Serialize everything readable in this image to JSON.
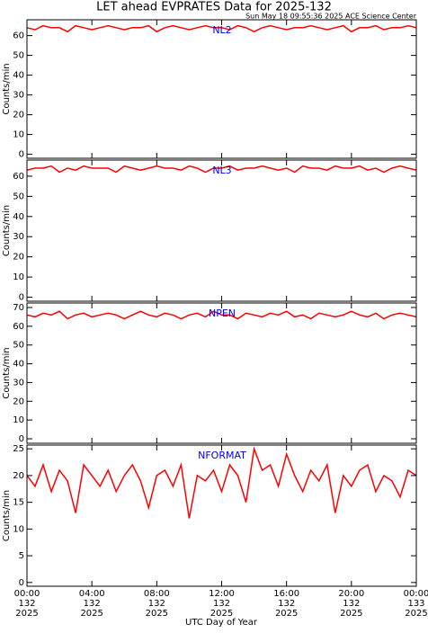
{
  "title": "LET ahead EVPRATES Data for 2025-132",
  "subtitle": "Sun May 18 09:55:36 2025 ACE Science Center",
  "xlabel": "UTC Day of Year",
  "chart_data": [
    {
      "type": "line",
      "label": "NL2",
      "ylabel": "Counts/min",
      "color": "#ff0000",
      "xlim": [
        0,
        24
      ],
      "xticks": [
        0,
        4,
        8,
        12,
        16,
        20,
        24
      ],
      "ylim": [
        -2,
        68
      ],
      "yticks": [
        0,
        10,
        20,
        30,
        40,
        50,
        60
      ],
      "x": [
        0,
        0.5,
        1,
        1.5,
        2,
        2.5,
        3,
        3.5,
        4,
        4.5,
        5,
        5.5,
        6,
        6.5,
        7,
        7.5,
        8,
        8.5,
        9,
        9.5,
        10,
        10.5,
        11,
        11.5,
        12,
        12.5,
        13,
        13.5,
        14,
        14.5,
        15,
        15.5,
        16,
        16.5,
        17,
        17.5,
        18,
        18.5,
        19,
        19.5,
        20,
        20.5,
        21,
        21.5,
        22,
        22.5,
        23,
        23.5,
        24
      ],
      "values": [
        64,
        63,
        65,
        64,
        64,
        62,
        65,
        64,
        63,
        64,
        65,
        64,
        63,
        64,
        64,
        65,
        62,
        64,
        65,
        64,
        63,
        64,
        65,
        64,
        64,
        63,
        65,
        64,
        62,
        64,
        65,
        64,
        63,
        64,
        64,
        65,
        64,
        63,
        64,
        65,
        62,
        64,
        64,
        65,
        63,
        64,
        64,
        65,
        64
      ]
    },
    {
      "type": "line",
      "label": "NL3",
      "ylabel": "Counts/min",
      "color": "#ff0000",
      "xlim": [
        0,
        24
      ],
      "xticks": [
        0,
        4,
        8,
        12,
        16,
        20,
        24
      ],
      "ylim": [
        -2,
        68
      ],
      "yticks": [
        0,
        10,
        20,
        30,
        40,
        50,
        60
      ],
      "x": [
        0,
        0.5,
        1,
        1.5,
        2,
        2.5,
        3,
        3.5,
        4,
        4.5,
        5,
        5.5,
        6,
        6.5,
        7,
        7.5,
        8,
        8.5,
        9,
        9.5,
        10,
        10.5,
        11,
        11.5,
        12,
        12.5,
        13,
        13.5,
        14,
        14.5,
        15,
        15.5,
        16,
        16.5,
        17,
        17.5,
        18,
        18.5,
        19,
        19.5,
        20,
        20.5,
        21,
        21.5,
        22,
        22.5,
        23,
        23.5,
        24
      ],
      "values": [
        63,
        64,
        64,
        65,
        62,
        64,
        63,
        65,
        64,
        64,
        64,
        62,
        65,
        64,
        63,
        64,
        65,
        64,
        64,
        63,
        65,
        64,
        62,
        64,
        64,
        65,
        63,
        64,
        64,
        65,
        64,
        63,
        64,
        62,
        65,
        64,
        64,
        63,
        65,
        64,
        64,
        65,
        63,
        64,
        62,
        64,
        65,
        64,
        63
      ]
    },
    {
      "type": "line",
      "label": "NPEN",
      "ylabel": "Counts/min",
      "color": "#ff0000",
      "xlim": [
        0,
        24
      ],
      "xticks": [
        0,
        4,
        8,
        12,
        16,
        20,
        24
      ],
      "ylim": [
        -2.4,
        72.4
      ],
      "yticks": [
        0,
        10,
        20,
        30,
        40,
        50,
        60,
        70
      ],
      "x": [
        0,
        0.5,
        1,
        1.5,
        2,
        2.5,
        3,
        3.5,
        4,
        4.5,
        5,
        5.5,
        6,
        6.5,
        7,
        7.5,
        8,
        8.5,
        9,
        9.5,
        10,
        10.5,
        11,
        11.5,
        12,
        12.5,
        13,
        13.5,
        14,
        14.5,
        15,
        15.5,
        16,
        16.5,
        17,
        17.5,
        18,
        18.5,
        19,
        19.5,
        20,
        20.5,
        21,
        21.5,
        22,
        22.5,
        23,
        23.5,
        24
      ],
      "values": [
        66,
        65,
        67,
        66,
        68,
        64,
        66,
        67,
        65,
        66,
        67,
        66,
        64,
        66,
        68,
        66,
        65,
        67,
        66,
        64,
        66,
        67,
        65,
        68,
        66,
        66,
        64,
        67,
        66,
        65,
        67,
        66,
        68,
        65,
        66,
        64,
        67,
        66,
        65,
        66,
        68,
        66,
        65,
        67,
        64,
        66,
        67,
        66,
        65
      ]
    },
    {
      "type": "line",
      "label": "NFORMAT",
      "ylabel": "Counts/min",
      "color": "#ff0000",
      "xlim": [
        0,
        24
      ],
      "xticks": [
        {
          "value": 0,
          "label": "00:00",
          "day": "132",
          "year": "2025"
        },
        {
          "value": 4,
          "label": "04:00",
          "day": "132",
          "year": "2025"
        },
        {
          "value": 8,
          "label": "08:00",
          "day": "132",
          "year": "2025"
        },
        {
          "value": 12,
          "label": "12:00",
          "day": "132",
          "year": "2025"
        },
        {
          "value": 16,
          "label": "16:00",
          "day": "132",
          "year": "2025"
        },
        {
          "value": 20,
          "label": "20:00",
          "day": "132",
          "year": "2025"
        },
        {
          "value": 24,
          "label": "00:00",
          "day": "133",
          "year": "2025"
        }
      ],
      "ylim": [
        -0.7,
        25.7
      ],
      "yticks": [
        0,
        5,
        10,
        15,
        20,
        25
      ],
      "x": [
        0,
        0.5,
        1,
        1.5,
        2,
        2.5,
        3,
        3.5,
        4,
        4.5,
        5,
        5.5,
        6,
        6.5,
        7,
        7.5,
        8,
        8.5,
        9,
        9.5,
        10,
        10.5,
        11,
        11.5,
        12,
        12.5,
        13,
        13.5,
        14,
        14.5,
        15,
        15.5,
        16,
        16.5,
        17,
        17.5,
        18,
        18.5,
        19,
        19.5,
        20,
        20.5,
        21,
        21.5,
        22,
        22.5,
        23,
        23.5,
        24
      ],
      "values": [
        20,
        18,
        22,
        17,
        21,
        19,
        13,
        22,
        20,
        18,
        21,
        17,
        20,
        22,
        19,
        14,
        20,
        21,
        18,
        22,
        12,
        20,
        19,
        21,
        17,
        22,
        20,
        15,
        25,
        21,
        22,
        18,
        24,
        20,
        17,
        21,
        19,
        22,
        13,
        20,
        18,
        21,
        22,
        17,
        20,
        19,
        16,
        21,
        20
      ]
    }
  ]
}
